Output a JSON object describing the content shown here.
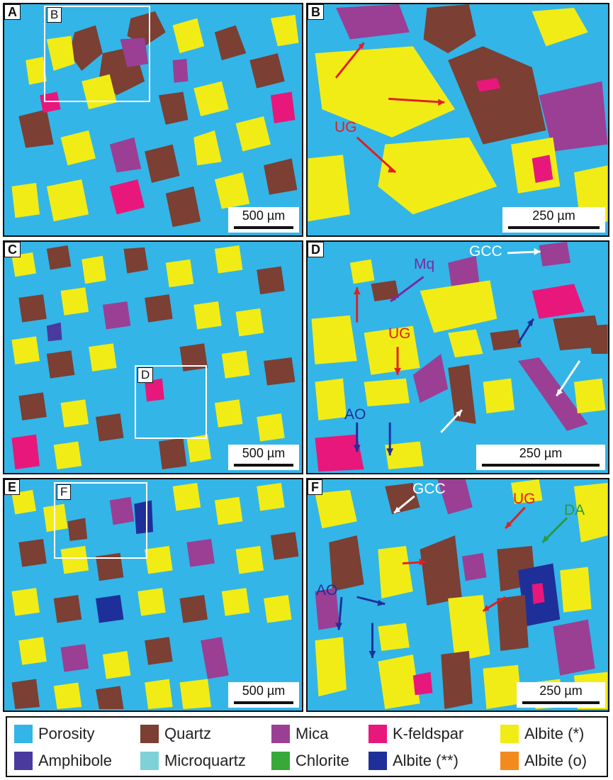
{
  "panels": [
    {
      "id": "A",
      "label": "A",
      "scale": "500 µm",
      "inset_label": "B"
    },
    {
      "id": "B",
      "label": "B",
      "scale": "250 µm"
    },
    {
      "id": "C",
      "label": "C",
      "scale": "500 µm",
      "inset_label": "D"
    },
    {
      "id": "D",
      "label": "D",
      "scale": "250 µm"
    },
    {
      "id": "E",
      "label": "E",
      "scale": "500 µm",
      "inset_label": "F"
    },
    {
      "id": "F",
      "label": "F",
      "scale": "250 µm"
    }
  ],
  "annotations": {
    "B": {
      "ug": "UG"
    },
    "D": {
      "mq": "Mq",
      "gcc": "GCC",
      "ug": "UG",
      "ao": "AO"
    },
    "F": {
      "gcc": "GCC",
      "ug": "UG",
      "da": "DA",
      "ao": "AO"
    }
  },
  "colors": {
    "porosity": "#33b5e8",
    "quartz": "#7b3f33",
    "mica": "#9a3f94",
    "kfeldspar": "#e8177b",
    "albite_star": "#f2ec16",
    "amphibole": "#4a3aa0",
    "microquartz": "#7fd1d8",
    "chlorite": "#38a83a",
    "albite_2star": "#1f2f99",
    "albite_o": "#f28a1e",
    "annotation_red": "#e02020",
    "annotation_white": "#ffffff",
    "annotation_blue": "#1f2f99",
    "annotation_purple": "#7a2aa0",
    "annotation_green": "#2a9a3a"
  },
  "legend": [
    {
      "label": "Porosity",
      "color": "#33b5e8"
    },
    {
      "label": "Quartz",
      "color": "#7b3f33"
    },
    {
      "label": "Mica",
      "color": "#9a3f94"
    },
    {
      "label": "K-feldspar",
      "color": "#e8177b"
    },
    {
      "label": "Albite (*)",
      "color": "#f2ec16"
    },
    {
      "label": "Amphibole",
      "color": "#4a3aa0"
    },
    {
      "label": "Microquartz",
      "color": "#7fd1d8"
    },
    {
      "label": "Chlorite",
      "color": "#38a83a"
    },
    {
      "label": "Albite (**)",
      "color": "#1f2f99"
    },
    {
      "label": "Albite (o)",
      "color": "#f28a1e"
    }
  ]
}
